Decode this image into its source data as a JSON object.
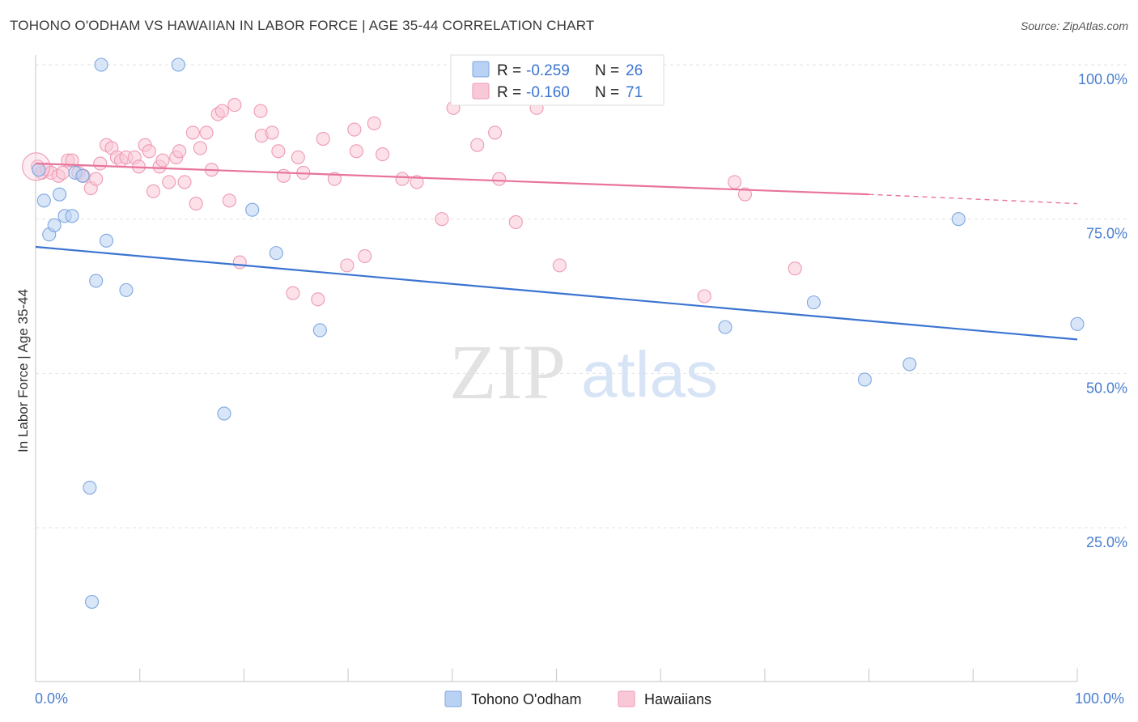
{
  "title": "TOHONO O'ODHAM VS HAWAIIAN IN LABOR FORCE | AGE 35-44 CORRELATION CHART",
  "source": "Source: ZipAtlas.com",
  "watermark": {
    "zip": "ZIP",
    "atlas": "atlas"
  },
  "colors": {
    "blue_fill": "#b9d1f3",
    "blue_stroke": "#7ea7e0",
    "blue_line": "#3b74d1",
    "pink_fill": "#f9c8d7",
    "pink_stroke": "#ee9ab5",
    "pink_line": "#e8739b",
    "axis_label": "#4a7fd0"
  },
  "legend": {
    "rows": [
      {
        "r_label": "R = ",
        "r_value": "-0.259",
        "n_label": "N = ",
        "n_value": "26"
      },
      {
        "r_label": "R = ",
        "r_value": "-0.160",
        "n_label": "N = ",
        "n_value": "71"
      }
    ]
  },
  "chart_data": {
    "type": "scatter",
    "xlabel": "",
    "ylabel": "In Labor Force | Age 35-44",
    "xlim": [
      0,
      100
    ],
    "ylim": [
      0,
      105
    ],
    "x_tick_labels": [
      "0.0%",
      "100.0%"
    ],
    "y_tick_labels": [
      "25.0%",
      "50.0%",
      "75.0%",
      "100.0%"
    ],
    "y_ticks": [
      25,
      50,
      75,
      100
    ],
    "grid": true,
    "series": [
      {
        "name": "Tohono O'odham",
        "color": "blue",
        "R": -0.259,
        "N": 26,
        "trend": {
          "x0": 0,
          "y0": 70.5,
          "x1": 100,
          "y1": 55.5
        },
        "points": [
          [
            0.3,
            83
          ],
          [
            0.8,
            78
          ],
          [
            1.3,
            72.5
          ],
          [
            1.8,
            74
          ],
          [
            2.3,
            79
          ],
          [
            2.8,
            75.5
          ],
          [
            3.5,
            75.5
          ],
          [
            3.8,
            82.5
          ],
          [
            4.5,
            82
          ],
          [
            5.2,
            31.5
          ],
          [
            5.4,
            13
          ],
          [
            5.8,
            65
          ],
          [
            6.3,
            100
          ],
          [
            6.8,
            71.5
          ],
          [
            8.7,
            63.5
          ],
          [
            13.7,
            100
          ],
          [
            18.1,
            43.5
          ],
          [
            20.8,
            76.5
          ],
          [
            23.1,
            69.5
          ],
          [
            27.3,
            57
          ],
          [
            66.2,
            57.5
          ],
          [
            74.7,
            61.5
          ],
          [
            79.6,
            49
          ],
          [
            83.9,
            51.5
          ],
          [
            88.6,
            75
          ],
          [
            100,
            58
          ]
        ]
      },
      {
        "name": "Hawaiians",
        "color": "pink",
        "R": -0.16,
        "N": 71,
        "trend": {
          "x0": 0,
          "y0": 84,
          "x1": 80,
          "y1": 79,
          "dash_x1": 100,
          "dash_y1": 77.5
        },
        "points": [
          [
            0.2,
            83.5
          ],
          [
            0.6,
            82.5
          ],
          [
            1.1,
            83
          ],
          [
            1.5,
            82.5
          ],
          [
            2.2,
            82
          ],
          [
            2.6,
            82.5
          ],
          [
            3.1,
            84.5
          ],
          [
            3.5,
            84.5
          ],
          [
            4.1,
            82.5
          ],
          [
            4.6,
            82
          ],
          [
            5.3,
            80
          ],
          [
            5.8,
            81.5
          ],
          [
            6.2,
            84
          ],
          [
            6.8,
            87
          ],
          [
            7.3,
            86.5
          ],
          [
            7.8,
            85
          ],
          [
            8.2,
            84.5
          ],
          [
            8.7,
            85
          ],
          [
            9.5,
            85
          ],
          [
            9.9,
            83.5
          ],
          [
            10.5,
            87
          ],
          [
            10.9,
            86
          ],
          [
            11.3,
            79.5
          ],
          [
            11.9,
            83.5
          ],
          [
            12.2,
            84.5
          ],
          [
            12.8,
            81
          ],
          [
            13.5,
            85
          ],
          [
            13.8,
            86
          ],
          [
            14.3,
            81
          ],
          [
            15.1,
            89
          ],
          [
            15.4,
            77.5
          ],
          [
            15.8,
            86.5
          ],
          [
            16.4,
            89
          ],
          [
            16.9,
            83
          ],
          [
            17.5,
            92
          ],
          [
            17.9,
            92.5
          ],
          [
            18.6,
            78
          ],
          [
            19.1,
            93.5
          ],
          [
            19.6,
            68
          ],
          [
            21.6,
            92.5
          ],
          [
            21.7,
            88.5
          ],
          [
            22.7,
            89
          ],
          [
            23.3,
            86
          ],
          [
            23.8,
            82
          ],
          [
            24.7,
            63
          ],
          [
            25.2,
            85
          ],
          [
            25.7,
            82.5
          ],
          [
            27.1,
            62
          ],
          [
            27.6,
            88
          ],
          [
            28.7,
            81.5
          ],
          [
            29.9,
            67.5
          ],
          [
            30.6,
            89.5
          ],
          [
            30.8,
            86
          ],
          [
            31.6,
            69
          ],
          [
            32.5,
            90.5
          ],
          [
            33.3,
            85.5
          ],
          [
            35.2,
            81.5
          ],
          [
            36.6,
            81
          ],
          [
            39,
            75
          ],
          [
            40.1,
            93
          ],
          [
            42.4,
            87
          ],
          [
            44.1,
            89
          ],
          [
            44.5,
            81.5
          ],
          [
            46.1,
            74.5
          ],
          [
            48.1,
            93
          ],
          [
            50.3,
            67.5
          ],
          [
            64.2,
            62.5
          ],
          [
            67.1,
            81
          ],
          [
            68.1,
            79
          ],
          [
            72.9,
            67
          ],
          [
            0.05,
            83.5
          ]
        ]
      }
    ]
  },
  "bottom_legend": [
    {
      "label": "Tohono O'odham"
    },
    {
      "label": "Hawaiians"
    }
  ]
}
